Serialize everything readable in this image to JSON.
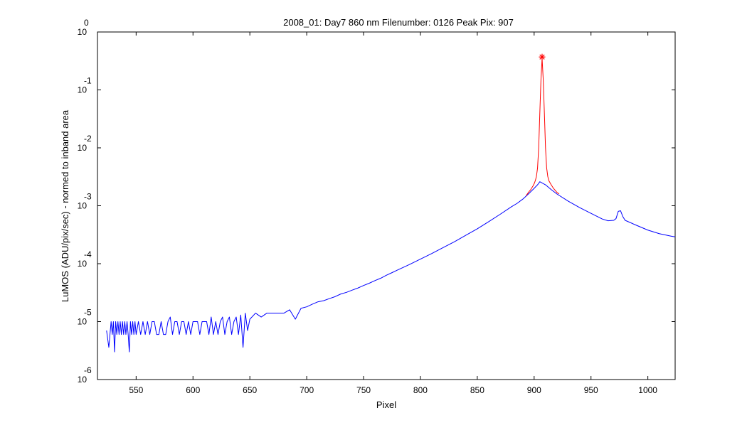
{
  "chart_data": {
    "type": "line",
    "title": "2008_01: Day7  860 nm  Filenumber: 0126 Peak Pix: 907",
    "xlabel": "Pixel",
    "ylabel": "LuMOS (ADU/pix/sec) - normed to inband area",
    "xlim": [
      516,
      1024
    ],
    "ylim": [
      1e-06,
      1
    ],
    "yscale": "log",
    "grid": false,
    "x_ticks": [
      550,
      600,
      650,
      700,
      750,
      800,
      850,
      900,
      950,
      1000
    ],
    "y_ticks": [
      {
        "base": "10",
        "exp": "0",
        "value": 1
      },
      {
        "base": "10",
        "exp": "-1",
        "value": 0.1
      },
      {
        "base": "10",
        "exp": "-2",
        "value": 0.01
      },
      {
        "base": "10",
        "exp": "-3",
        "value": 0.001
      },
      {
        "base": "10",
        "exp": "-4",
        "value": 0.0001
      },
      {
        "base": "10",
        "exp": "-5",
        "value": 1e-05
      },
      {
        "base": "10",
        "exp": "-6",
        "value": 1e-06
      }
    ],
    "series": [
      {
        "color": "#0000ff",
        "x": [
          524,
          526,
          528,
          529,
          530,
          531,
          532,
          533,
          534,
          535,
          536,
          537,
          538,
          539,
          540,
          541,
          542,
          543,
          544,
          545,
          546,
          547,
          548,
          549,
          550,
          552,
          554,
          556,
          558,
          560,
          562,
          564,
          566,
          568,
          570,
          572,
          574,
          576,
          578,
          580,
          582,
          584,
          586,
          588,
          590,
          592,
          594,
          596,
          598,
          600,
          602,
          604,
          606,
          608,
          610,
          612,
          614,
          616,
          618,
          620,
          622,
          624,
          626,
          628,
          630,
          632,
          634,
          636,
          638,
          640,
          642,
          644,
          646,
          648,
          650,
          655,
          660,
          665,
          670,
          675,
          680,
          685,
          690,
          695,
          700,
          705,
          710,
          715,
          720,
          725,
          730,
          735,
          740,
          745,
          750,
          755,
          760,
          765,
          770,
          775,
          780,
          790,
          800,
          810,
          820,
          830,
          840,
          850,
          860,
          870,
          880,
          885,
          890,
          895,
          900,
          903,
          905,
          910,
          915,
          920,
          930,
          940,
          950,
          960,
          965,
          970,
          972,
          974,
          976,
          978,
          980,
          990,
          1000,
          1010,
          1020,
          1024
        ],
        "y": [
          7e-06,
          3.6e-06,
          1e-05,
          6e-06,
          1e-05,
          3e-06,
          1e-05,
          6e-06,
          1e-05,
          6e-06,
          1e-05,
          6e-06,
          1e-05,
          6e-06,
          1e-05,
          6e-06,
          1e-05,
          6e-06,
          3e-06,
          1e-05,
          6e-06,
          1e-05,
          6e-06,
          1e-05,
          6e-06,
          1e-05,
          6e-06,
          1e-05,
          6e-06,
          1e-05,
          6e-06,
          1e-05,
          1e-05,
          6e-06,
          6e-06,
          1e-05,
          6e-06,
          6e-06,
          1e-05,
          1.2e-05,
          6e-06,
          1e-05,
          1e-05,
          6e-06,
          1e-05,
          1e-05,
          6e-06,
          1e-05,
          6e-06,
          1e-05,
          1e-05,
          1e-05,
          6e-06,
          1e-05,
          1e-05,
          1e-05,
          6e-06,
          1.2e-05,
          6e-06,
          1e-05,
          6e-06,
          1e-05,
          1.2e-05,
          6e-06,
          1e-05,
          1.2e-05,
          6e-06,
          1e-05,
          1.2e-05,
          6e-06,
          1.3e-05,
          3.6e-06,
          1.4e-05,
          7e-06,
          1.1e-05,
          1.4e-05,
          1.2e-05,
          1.4e-05,
          1.4e-05,
          1.4e-05,
          1.4e-05,
          1.6e-05,
          1.1e-05,
          1.7e-05,
          1.8e-05,
          2e-05,
          2.2e-05,
          2.3e-05,
          2.5e-05,
          2.7e-05,
          3e-05,
          3.2e-05,
          3.5e-05,
          3.8e-05,
          4.2e-05,
          4.6e-05,
          5.1e-05,
          5.6e-05,
          6.3e-05,
          7e-05,
          7.8e-05,
          9.6e-05,
          0.00012,
          0.00015,
          0.00019,
          0.00024,
          0.00031,
          0.0004,
          0.00053,
          0.00071,
          0.00096,
          0.0011,
          0.0013,
          0.0016,
          0.002,
          0.0023,
          0.0026,
          0.0023,
          0.0019,
          0.0016,
          0.0012,
          0.00093,
          0.00074,
          0.00059,
          0.00055,
          0.00056,
          0.0006,
          0.0008,
          0.00082,
          0.00065,
          0.00056,
          0.00046,
          0.00038,
          0.00033,
          0.0003,
          0.00029
        ]
      },
      {
        "color": "#ff0000",
        "x": [
          893,
          895,
          897,
          899,
          900,
          901,
          902,
          903,
          904,
          905,
          906,
          907,
          908,
          909,
          910,
          911,
          912,
          913,
          915,
          917,
          919,
          920,
          922
        ],
        "y": [
          0.0015,
          0.0017,
          0.0019,
          0.0022,
          0.0024,
          0.0027,
          0.0032,
          0.0045,
          0.01,
          0.04,
          0.15,
          0.35,
          0.15,
          0.04,
          0.01,
          0.0045,
          0.0032,
          0.0027,
          0.0023,
          0.002,
          0.0018,
          0.0017,
          0.0016
        ]
      }
    ],
    "annotations": [
      {
        "type": "marker",
        "symbol": "*",
        "color": "#ff0000",
        "x": 907,
        "y": 0.37
      }
    ]
  }
}
